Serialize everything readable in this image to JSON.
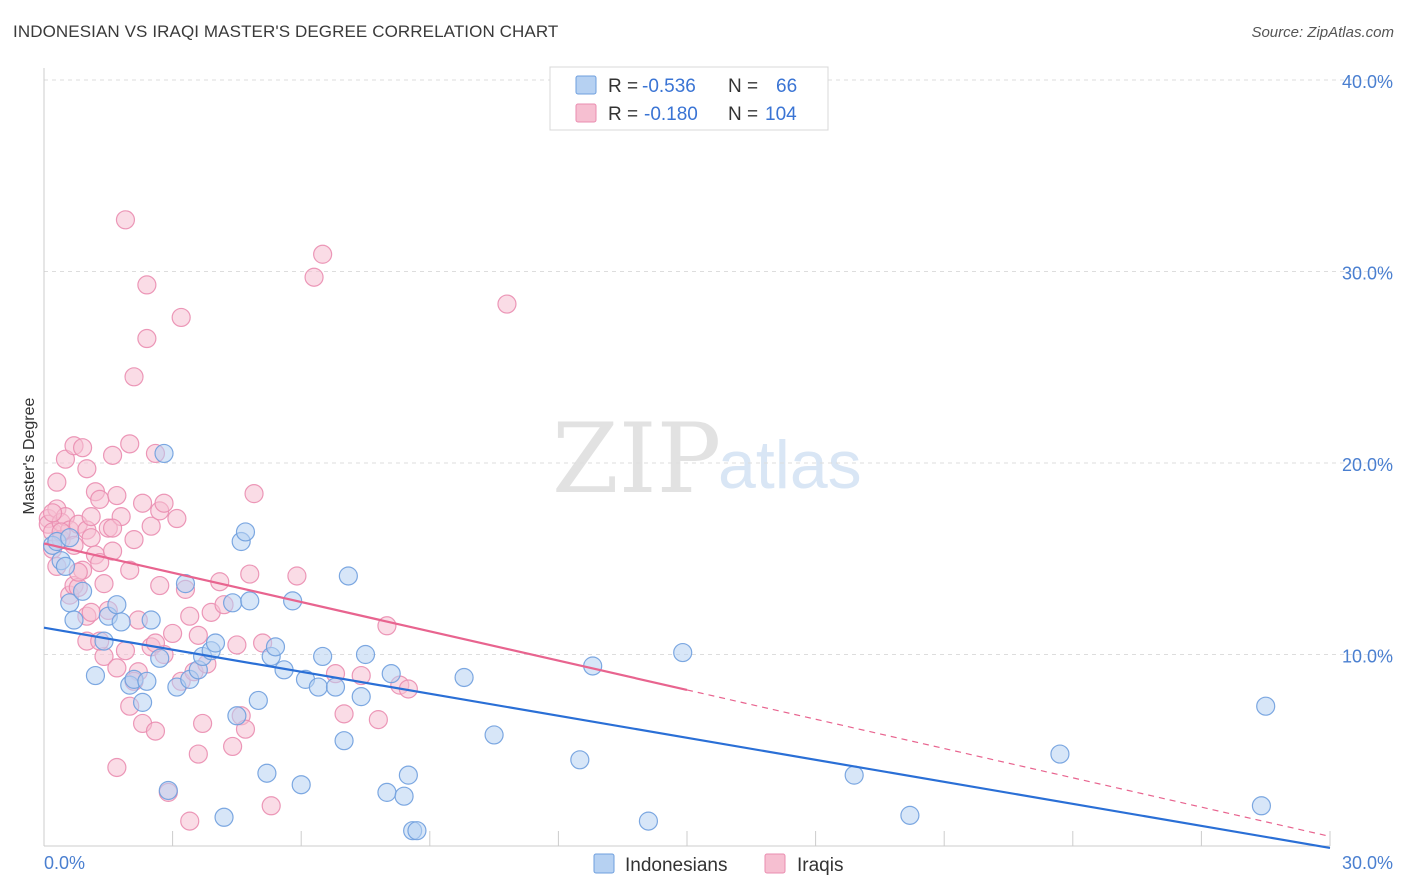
{
  "title": "INDONESIAN VS IRAQI MASTER'S DEGREE CORRELATION CHART",
  "source": "Source: ZipAtlas.com",
  "watermark": {
    "zip": "ZIP",
    "atlas": "atlas"
  },
  "legend": {
    "rows": [
      {
        "r_label": "R = ",
        "r_value": "-0.536",
        "n_label": "N = ",
        "n_value": "66"
      },
      {
        "r_label": "R = ",
        "r_value": "-0.180",
        "n_label": "N = ",
        "n_value": "104"
      }
    ]
  },
  "bottom_legend": [
    "Indonesians",
    "Iraqis"
  ],
  "colors": {
    "blue_fill": "#b6d1f2",
    "blue_stroke": "#6f9fde",
    "blue_line": "#2a6fd6",
    "pink_fill": "#f6bfd1",
    "pink_stroke": "#ea8db0",
    "pink_line": "#e8648f",
    "grid": "#dddddd",
    "axis": "#cccccc"
  },
  "chart_data": {
    "type": "scatter",
    "title": "INDONESIAN VS IRAQI MASTER'S DEGREE CORRELATION CHART",
    "xlabel": "",
    "ylabel": "Master's Degree",
    "xlim": [
      0,
      30
    ],
    "ylim": [
      0,
      40
    ],
    "x_tick_labels": [
      "0.0%",
      "30.0%"
    ],
    "y_ticks": [
      10,
      20,
      30,
      40
    ],
    "y_tick_labels": [
      "10.0%",
      "20.0%",
      "30.0%",
      "40.0%"
    ],
    "grid": true,
    "series": [
      {
        "name": "Indonesians",
        "R": -0.536,
        "N": 66,
        "trend": {
          "x": [
            0,
            30
          ],
          "y": [
            11.4,
            -0.1
          ],
          "dashed_from_x": null
        },
        "points": [
          [
            0.2,
            15.7
          ],
          [
            0.3,
            15.9
          ],
          [
            0.4,
            14.9
          ],
          [
            0.5,
            14.6
          ],
          [
            0.6,
            12.7
          ],
          [
            0.7,
            11.8
          ],
          [
            0.9,
            13.3
          ],
          [
            1.2,
            8.9
          ],
          [
            1.4,
            10.7
          ],
          [
            1.5,
            12.0
          ],
          [
            1.7,
            12.6
          ],
          [
            1.8,
            11.7
          ],
          [
            2.0,
            8.4
          ],
          [
            2.1,
            8.7
          ],
          [
            2.3,
            7.5
          ],
          [
            2.4,
            8.6
          ],
          [
            2.5,
            11.8
          ],
          [
            2.7,
            9.8
          ],
          [
            2.8,
            20.5
          ],
          [
            2.9,
            2.9
          ],
          [
            3.1,
            8.3
          ],
          [
            3.3,
            13.7
          ],
          [
            3.4,
            8.7
          ],
          [
            3.6,
            9.2
          ],
          [
            3.7,
            9.9
          ],
          [
            3.9,
            10.2
          ],
          [
            4.0,
            10.6
          ],
          [
            4.2,
            1.5
          ],
          [
            4.4,
            12.7
          ],
          [
            4.5,
            6.8
          ],
          [
            4.6,
            15.9
          ],
          [
            4.7,
            16.4
          ],
          [
            4.8,
            12.8
          ],
          [
            5.0,
            7.6
          ],
          [
            5.2,
            3.8
          ],
          [
            5.3,
            9.9
          ],
          [
            5.4,
            10.4
          ],
          [
            5.6,
            9.2
          ],
          [
            5.8,
            12.8
          ],
          [
            6.0,
            3.2
          ],
          [
            6.1,
            8.7
          ],
          [
            6.4,
            8.3
          ],
          [
            6.5,
            9.9
          ],
          [
            6.8,
            8.3
          ],
          [
            7.0,
            5.5
          ],
          [
            7.1,
            14.1
          ],
          [
            7.4,
            7.8
          ],
          [
            7.5,
            10.0
          ],
          [
            8.0,
            2.8
          ],
          [
            8.1,
            9.0
          ],
          [
            8.4,
            2.6
          ],
          [
            8.5,
            3.7
          ],
          [
            8.6,
            0.8
          ],
          [
            8.7,
            0.8
          ],
          [
            9.8,
            8.8
          ],
          [
            10.5,
            5.8
          ],
          [
            12.5,
            4.5
          ],
          [
            12.8,
            9.4
          ],
          [
            14.1,
            1.3
          ],
          [
            14.9,
            10.1
          ],
          [
            18.9,
            3.7
          ],
          [
            20.2,
            1.6
          ],
          [
            23.7,
            4.8
          ],
          [
            28.5,
            7.3
          ],
          [
            28.4,
            2.1
          ],
          [
            0.6,
            16.1
          ]
        ]
      },
      {
        "name": "Iraqis",
        "R": -0.18,
        "N": 104,
        "trend": {
          "x": [
            0,
            30
          ],
          "y": [
            15.8,
            0.5
          ],
          "dashed_from_x": 15.0
        },
        "points": [
          [
            0.1,
            17.1
          ],
          [
            0.1,
            16.8
          ],
          [
            0.2,
            16.4
          ],
          [
            0.2,
            15.5
          ],
          [
            0.3,
            14.6
          ],
          [
            0.3,
            19.0
          ],
          [
            0.3,
            17.6
          ],
          [
            0.4,
            16.9
          ],
          [
            0.4,
            16.0
          ],
          [
            0.5,
            20.2
          ],
          [
            0.5,
            17.2
          ],
          [
            0.6,
            13.1
          ],
          [
            0.6,
            16.5
          ],
          [
            0.7,
            20.9
          ],
          [
            0.7,
            13.6
          ],
          [
            0.7,
            15.7
          ],
          [
            0.8,
            16.8
          ],
          [
            0.8,
            13.5
          ],
          [
            0.9,
            14.4
          ],
          [
            1.0,
            16.5
          ],
          [
            1.0,
            10.7
          ],
          [
            1.0,
            19.7
          ],
          [
            1.0,
            12.0
          ],
          [
            1.1,
            17.2
          ],
          [
            1.1,
            16.1
          ],
          [
            1.2,
            18.5
          ],
          [
            1.2,
            15.2
          ],
          [
            1.3,
            14.8
          ],
          [
            1.3,
            18.1
          ],
          [
            1.4,
            13.7
          ],
          [
            1.4,
            9.9
          ],
          [
            1.5,
            16.6
          ],
          [
            1.5,
            12.3
          ],
          [
            1.6,
            20.4
          ],
          [
            1.6,
            15.4
          ],
          [
            1.7,
            18.3
          ],
          [
            1.7,
            9.3
          ],
          [
            1.7,
            4.1
          ],
          [
            1.8,
            17.2
          ],
          [
            1.9,
            32.7
          ],
          [
            1.9,
            10.2
          ],
          [
            2.0,
            14.4
          ],
          [
            2.0,
            7.3
          ],
          [
            2.1,
            24.5
          ],
          [
            2.1,
            16.0
          ],
          [
            2.2,
            11.8
          ],
          [
            2.2,
            9.1
          ],
          [
            2.3,
            6.4
          ],
          [
            2.3,
            17.9
          ],
          [
            2.4,
            29.3
          ],
          [
            2.4,
            26.5
          ],
          [
            2.5,
            16.7
          ],
          [
            2.5,
            10.4
          ],
          [
            2.6,
            20.5
          ],
          [
            2.6,
            6.0
          ],
          [
            2.7,
            17.5
          ],
          [
            2.7,
            13.6
          ],
          [
            2.8,
            17.9
          ],
          [
            2.8,
            10.0
          ],
          [
            2.9,
            2.8
          ],
          [
            3.0,
            11.1
          ],
          [
            3.1,
            17.1
          ],
          [
            3.2,
            8.6
          ],
          [
            3.2,
            27.6
          ],
          [
            3.4,
            1.3
          ],
          [
            3.4,
            12.0
          ],
          [
            3.5,
            9.1
          ],
          [
            3.6,
            11.0
          ],
          [
            3.6,
            4.8
          ],
          [
            3.7,
            6.4
          ],
          [
            3.8,
            9.5
          ],
          [
            3.9,
            12.2
          ],
          [
            4.1,
            13.8
          ],
          [
            4.2,
            12.6
          ],
          [
            4.4,
            5.2
          ],
          [
            4.5,
            10.5
          ],
          [
            4.6,
            6.8
          ],
          [
            4.7,
            6.1
          ],
          [
            4.8,
            14.2
          ],
          [
            4.9,
            18.4
          ],
          [
            5.1,
            10.6
          ],
          [
            5.3,
            2.1
          ],
          [
            5.9,
            14.1
          ],
          [
            6.3,
            29.7
          ],
          [
            6.5,
            30.9
          ],
          [
            6.8,
            9.0
          ],
          [
            7.0,
            6.9
          ],
          [
            7.4,
            8.9
          ],
          [
            7.8,
            6.6
          ],
          [
            8.0,
            11.5
          ],
          [
            8.3,
            8.4
          ],
          [
            8.5,
            8.2
          ],
          [
            10.8,
            28.3
          ],
          [
            0.2,
            17.4
          ],
          [
            0.9,
            20.8
          ],
          [
            1.1,
            12.2
          ],
          [
            2.0,
            21.0
          ],
          [
            2.6,
            10.6
          ],
          [
            3.3,
            13.4
          ],
          [
            0.4,
            16.4
          ],
          [
            1.6,
            16.6
          ],
          [
            2.1,
            8.6
          ],
          [
            0.8,
            14.3
          ],
          [
            1.3,
            10.7
          ]
        ]
      }
    ]
  }
}
